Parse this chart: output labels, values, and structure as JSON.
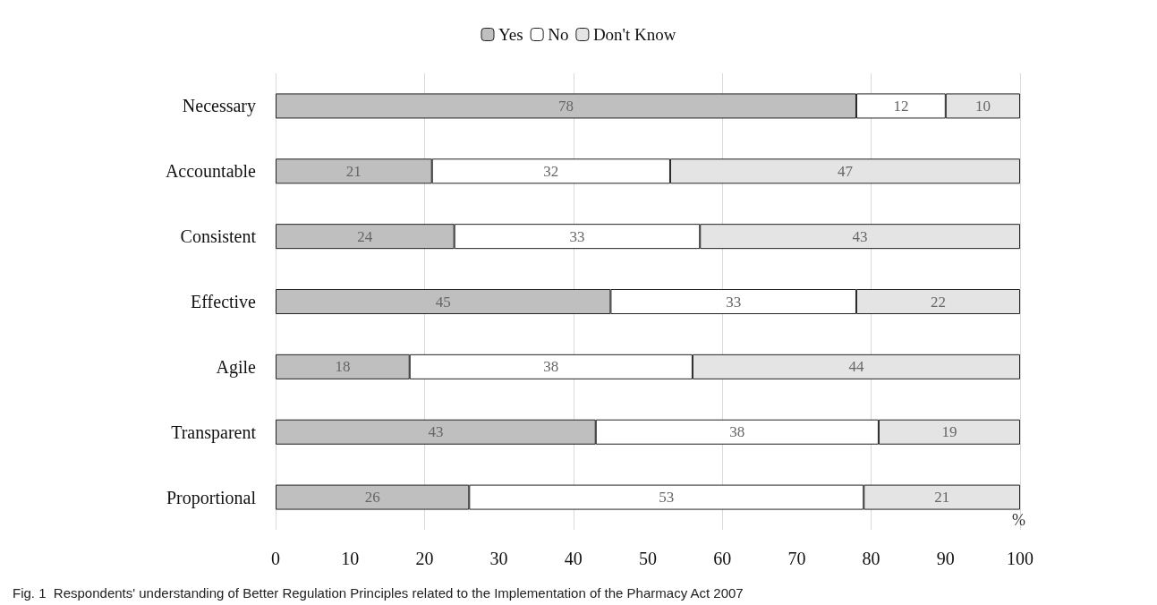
{
  "chart_data": {
    "type": "bar",
    "orientation": "horizontal",
    "stacked": true,
    "data_labels": true,
    "grid": "x",
    "legend": "top",
    "xlabel": "%",
    "categories": [
      "Necessary",
      "Accountable",
      "Consistent",
      "Effective",
      "Agile",
      "Transparent",
      "Proportional"
    ],
    "series": [
      {
        "name": "Yes",
        "color": "#bfbfbf",
        "values": [
          78,
          21,
          24,
          45,
          18,
          43,
          26
        ]
      },
      {
        "name": "No",
        "color": "#ffffff",
        "values": [
          12,
          32,
          33,
          33,
          38,
          38,
          53
        ]
      },
      {
        "name": "Don't Know",
        "color": "#e4e4e4",
        "values": [
          10,
          47,
          43,
          22,
          44,
          19,
          21
        ]
      }
    ],
    "xlim": [
      0,
      100
    ],
    "xticks": [
      0,
      10,
      20,
      30,
      40,
      50,
      60,
      70,
      80,
      90,
      100
    ],
    "annotations": [
      "Fig. 1  Respondents' understanding of Better Regulation Principles related to the Implementation of the Pharmacy Act 2007"
    ]
  }
}
